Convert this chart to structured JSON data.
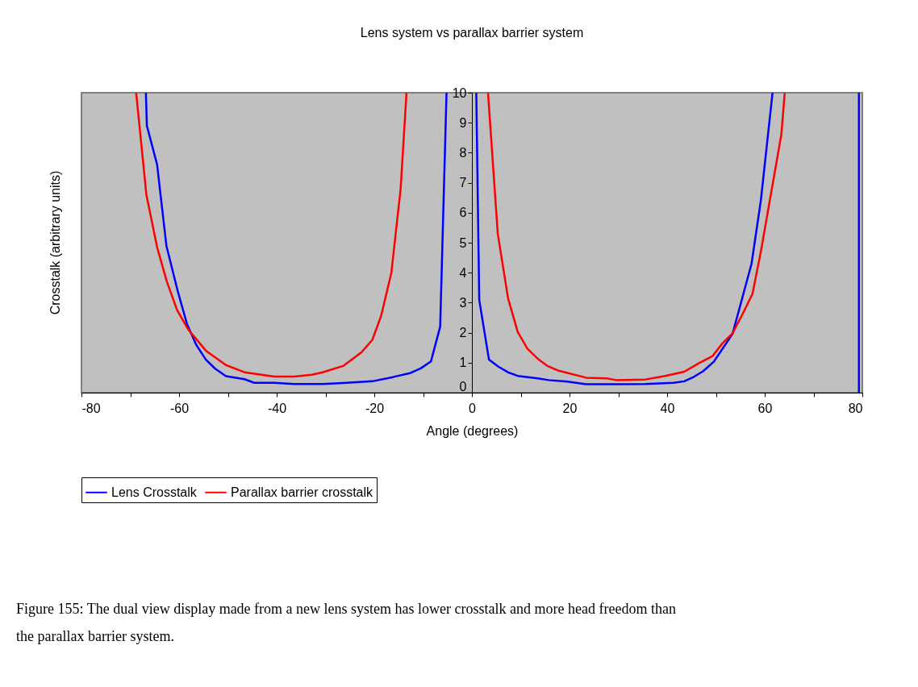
{
  "chart_data": {
    "type": "line",
    "title": "Lens system vs parallax barrier system",
    "xlabel": "Angle (degrees)",
    "ylabel": "Crosstalk (arbitrary units)",
    "xlim": [
      -80,
      80
    ],
    "ylim": [
      0,
      10
    ],
    "xticks": [
      -80,
      {
        "value": -70,
        "label": null
      },
      -60,
      {
        "value": -50,
        "label": null
      },
      -40,
      {
        "value": -30,
        "label": null
      },
      -20,
      {
        "value": -10,
        "label": null
      },
      0,
      {
        "value": 10,
        "label": null
      },
      20,
      {
        "value": 30,
        "label": null
      },
      40,
      {
        "value": 50,
        "label": null
      },
      60,
      {
        "value": 70,
        "label": null
      },
      80
    ],
    "yticks": [
      0,
      1,
      2,
      3,
      4,
      5,
      6,
      7,
      8,
      9,
      10
    ],
    "grid": false,
    "legend": "bottom",
    "marker": "none",
    "line_style": "solid",
    "series": [
      {
        "name": "Lens Crosstalk",
        "color": "#0000ff",
        "x": [
          -66.8,
          -66.6,
          -64.5,
          -62.6,
          -60.3,
          -58.4,
          -56.5,
          -54.5,
          -52.6,
          -50.4,
          -46.6,
          -44.6,
          -40.5,
          -36.4,
          -30.6,
          -26.4,
          -20.4,
          -16.2,
          -12.7,
          -10.5,
          -8.4,
          -6.5,
          -5.2,
          -2,
          0.9,
          1.5,
          3.5,
          5.5,
          7.4,
          9.4,
          13.5,
          15.7,
          19.6,
          23.4,
          29.5,
          35.5,
          41.3,
          43.5,
          45.5,
          47.4,
          49.6,
          53.4,
          57.3,
          59.2,
          61.6,
          70,
          79.3,
          79.3
        ],
        "values": [
          10,
          8.9,
          7.6,
          4.9,
          3.4,
          2.3,
          1.6,
          1.1,
          0.8,
          0.55,
          0.45,
          0.33,
          0.33,
          0.29,
          0.29,
          0.32,
          0.38,
          0.52,
          0.65,
          0.81,
          1.04,
          2.2,
          10,
          null,
          10,
          3.1,
          1.1,
          0.86,
          0.68,
          0.56,
          0.48,
          0.42,
          0.37,
          0.28,
          0.28,
          0.29,
          0.33,
          0.38,
          0.53,
          0.72,
          1.04,
          1.96,
          4.3,
          6.4,
          10,
          null,
          10,
          0
        ]
      },
      {
        "name": "Parallax barrier crosstalk",
        "color": "#ff0000",
        "x": [
          -68.8,
          -66.7,
          -64.5,
          -62.5,
          -60.4,
          -58.1,
          -54.5,
          -50.4,
          -46.6,
          -40.5,
          -36.4,
          -32.8,
          -30.6,
          -26.4,
          -22.6,
          -20.4,
          -18.6,
          -16.5,
          -14.6,
          -13.4,
          -5,
          3.3,
          5.3,
          7.4,
          9.4,
          11.4,
          13.5,
          15.4,
          17.6,
          23.4,
          27.6,
          29.5,
          35.5,
          39.4,
          43.5,
          46.6,
          49.3,
          51.2,
          53.4,
          55.4,
          57.5,
          59.2,
          63.4,
          64.1
        ],
        "values": [
          10,
          6.6,
          4.85,
          3.7,
          2.75,
          2.1,
          1.4,
          0.92,
          0.68,
          0.54,
          0.54,
          0.6,
          0.68,
          0.89,
          1.35,
          1.76,
          2.56,
          4.0,
          6.8,
          10,
          null,
          10,
          5.3,
          3.15,
          2.02,
          1.46,
          1.13,
          0.9,
          0.74,
          0.5,
          0.48,
          0.42,
          0.44,
          0.55,
          0.7,
          0.99,
          1.22,
          1.62,
          1.98,
          2.6,
          3.3,
          4.7,
          8.6,
          10
        ]
      }
    ],
    "annotations": [
      "Figure 155: The dual view display made from a new lens system has lower crosstalk and more head freedom than the parallax barrier system."
    ]
  }
}
